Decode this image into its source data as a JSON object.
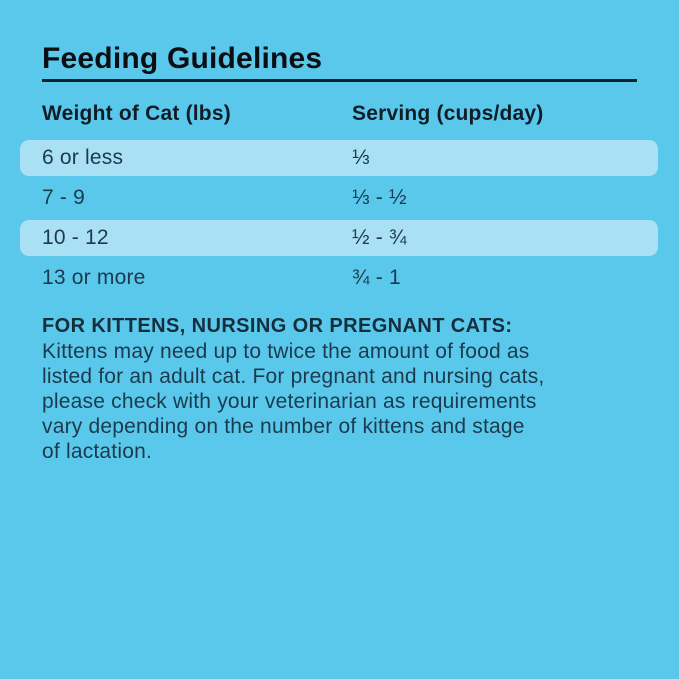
{
  "colors": {
    "background": "#5AC8EB",
    "row_highlight": "#A9E0F3",
    "title_text": "#0B0F14",
    "divider": "#10222E",
    "header_text": "#101C26",
    "body_text": "#1C3A4E",
    "note_heading_text": "#142E3E"
  },
  "title": "Feeding Guidelines",
  "table": {
    "columns": [
      "Weight of Cat (lbs)",
      "Serving (cups/day)"
    ],
    "rows": [
      {
        "weight": "6 or less",
        "serving": "⅓",
        "highlighted": true
      },
      {
        "weight": "7 - 9",
        "serving": "⅓ - ½",
        "highlighted": false
      },
      {
        "weight": "10 - 12",
        "serving": "½ - ¾",
        "highlighted": true
      },
      {
        "weight": "13 or more",
        "serving": "¾ - 1",
        "highlighted": false
      }
    ]
  },
  "note": {
    "heading": "FOR KITTENS, NURSING OR PREGNANT CATS:",
    "body_lines": [
      "Kittens may need up to twice the amount of food as",
      "listed for an adult cat. For pregnant and nursing cats,",
      "please check with your veterinarian as requirements",
      "vary depending on the number of kittens and stage",
      "of lactation."
    ]
  }
}
